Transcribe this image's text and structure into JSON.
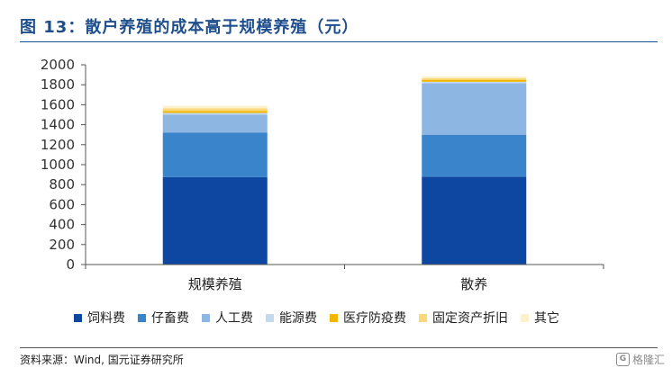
{
  "header": {
    "title": "图 13：散户养殖的成本高于规模养殖（元）"
  },
  "footer": {
    "source": "资料来源：Wind, 国元证券研究所",
    "watermark": "格隆汇"
  },
  "chart_data": {
    "type": "bar",
    "stacked": true,
    "title": "图 13：散户养殖的成本高于规模养殖（元）",
    "categories": [
      "规模养殖",
      "散养"
    ],
    "ylim": [
      0,
      2000
    ],
    "yticks": [
      0,
      200,
      400,
      600,
      800,
      1000,
      1200,
      1400,
      1600,
      1800,
      2000
    ],
    "grid": false,
    "legend_position": "bottom",
    "series": [
      {
        "name": "饲料费",
        "color": "#0d47a1",
        "values": [
          875,
          880
        ]
      },
      {
        "name": "仔畜费",
        "color": "#3a84cb",
        "values": [
          445,
          420
        ]
      },
      {
        "name": "人工费",
        "color": "#8db7e2",
        "values": [
          180,
          515
        ]
      },
      {
        "name": "能源费",
        "color": "#c3d9ee",
        "values": [
          18,
          15
        ]
      },
      {
        "name": "医疗防疫费",
        "color": "#f2b600",
        "values": [
          20,
          20
        ]
      },
      {
        "name": "固定资产折旧",
        "color": "#fbd978",
        "values": [
          25,
          15
        ]
      },
      {
        "name": "其它",
        "color": "#fdf0cc",
        "values": [
          27,
          20
        ]
      }
    ]
  }
}
